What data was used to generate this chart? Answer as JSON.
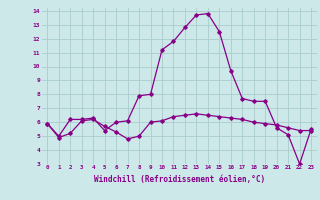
{
  "xlabel": "Windchill (Refroidissement éolien,°C)",
  "background_color": "#cce8e8",
  "grid_color": "#aacccc",
  "line_color": "#880088",
  "xlim": [
    -0.5,
    23.5
  ],
  "ylim": [
    3,
    14.2
  ],
  "yticks": [
    3,
    4,
    5,
    6,
    7,
    8,
    9,
    10,
    11,
    12,
    13,
    14
  ],
  "xticks": [
    0,
    1,
    2,
    3,
    4,
    5,
    6,
    7,
    8,
    9,
    10,
    11,
    12,
    13,
    14,
    15,
    16,
    17,
    18,
    19,
    20,
    21,
    22,
    23
  ],
  "series1_x": [
    0,
    1,
    2,
    3,
    4,
    5,
    6,
    7,
    8,
    9,
    10,
    11,
    12,
    13,
    14,
    15,
    16,
    17,
    18,
    19,
    20,
    21,
    22,
    23
  ],
  "series1_y": [
    5.9,
    4.9,
    5.2,
    6.1,
    6.2,
    5.7,
    5.3,
    4.8,
    5.0,
    6.0,
    6.1,
    6.4,
    6.5,
    6.6,
    6.5,
    6.4,
    6.3,
    6.2,
    6.0,
    5.9,
    5.8,
    5.6,
    5.4,
    5.4
  ],
  "series2_x": [
    0,
    1,
    2,
    3,
    4,
    5,
    6,
    7,
    8,
    9,
    10,
    11,
    12,
    13,
    14,
    15,
    16,
    17,
    18,
    19,
    20,
    21,
    22,
    23
  ],
  "series2_y": [
    5.9,
    5.0,
    6.2,
    6.2,
    6.3,
    5.4,
    6.0,
    6.1,
    7.9,
    8.0,
    11.2,
    11.8,
    12.8,
    13.7,
    13.8,
    12.5,
    9.7,
    7.7,
    7.5,
    7.5,
    5.6,
    5.1,
    3.0,
    5.5
  ]
}
